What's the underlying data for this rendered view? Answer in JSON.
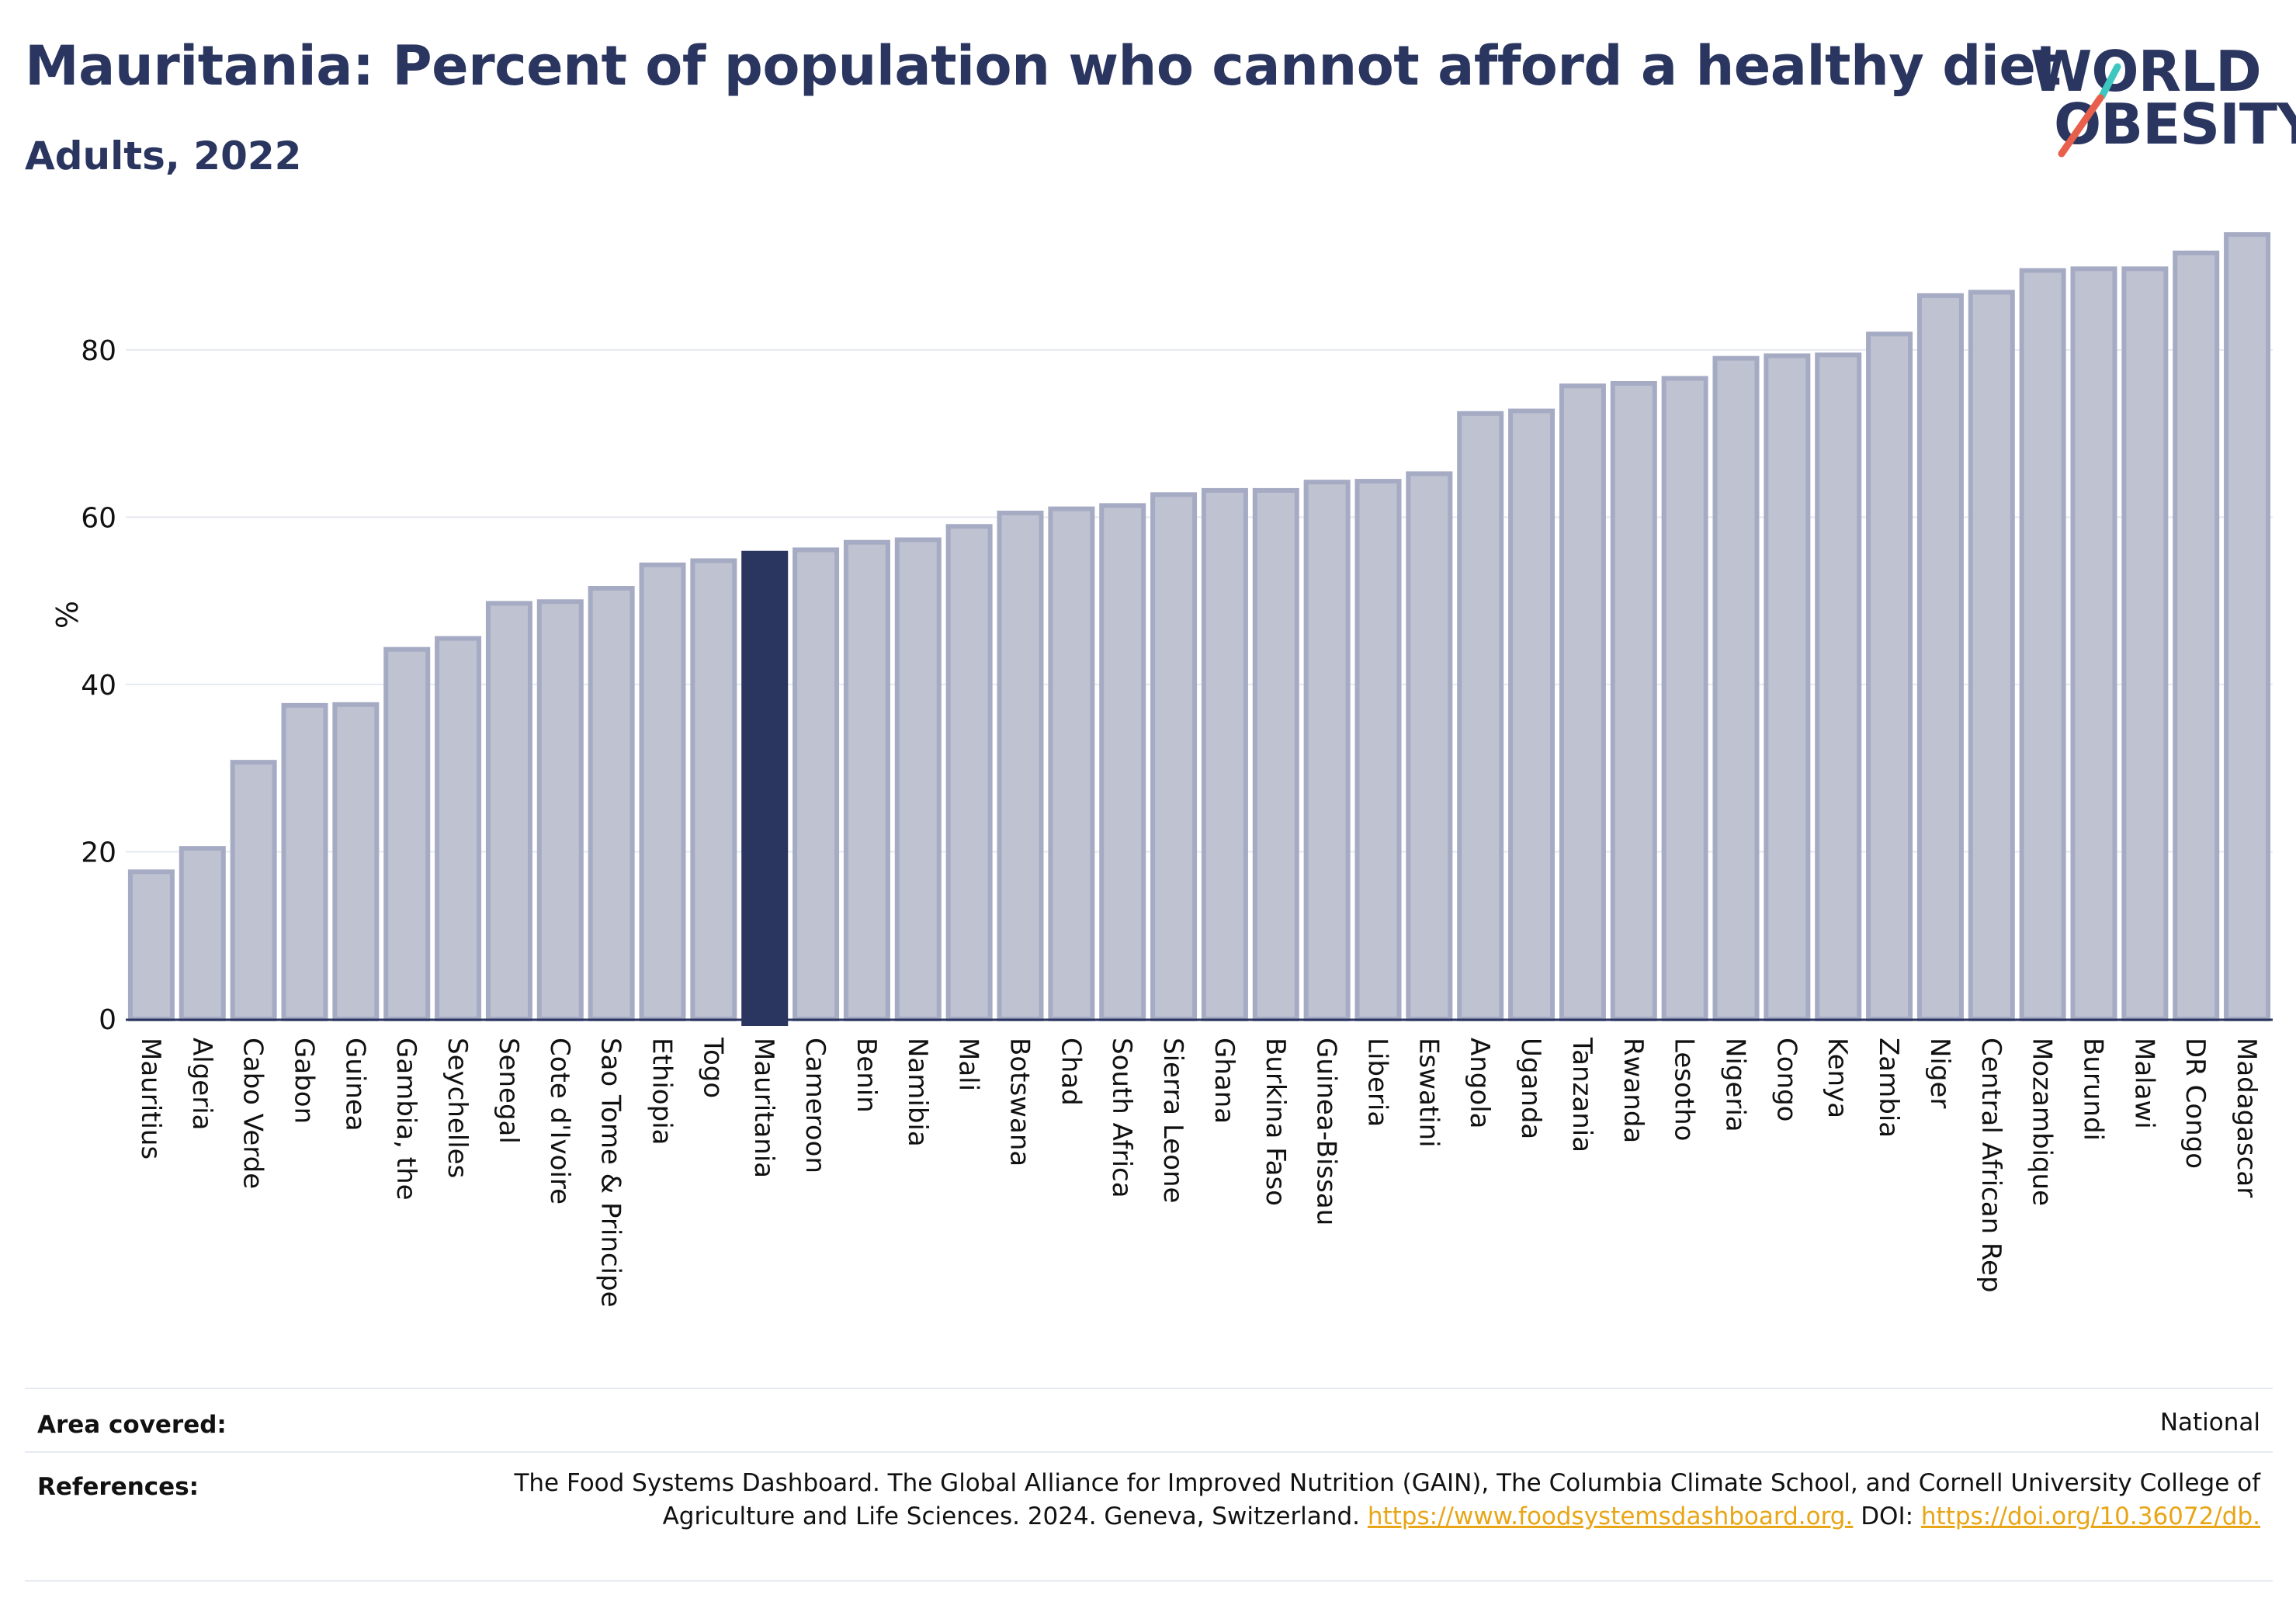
{
  "header": {
    "title": "Mauritania: Percent of population who cannot afford a healthy diet",
    "subtitle": "Adults, 2022"
  },
  "logo": {
    "line1": "WORLD",
    "line2": "OBESITY",
    "slash_colors": [
      "#3ec7c0",
      "#e8604c"
    ]
  },
  "colors": {
    "bar": "#bec2d1",
    "bar_outline": "#a6abc4",
    "highlight": "#2a3560",
    "text": "#2a3560"
  },
  "chart_data": {
    "type": "bar",
    "ylabel": "%",
    "ylim": [
      0,
      94
    ],
    "yticks": [
      0,
      20,
      40,
      60,
      80
    ],
    "grid": true,
    "highlight": "Mauritania",
    "categories": [
      "Mauritius",
      "Algeria",
      "Cabo Verde",
      "Gabon",
      "Guinea",
      "Gambia, the",
      "Seychelles",
      "Senegal",
      "Cote d'Ivoire",
      "Sao Tome & Principe",
      "Ethiopia",
      "Togo",
      "Mauritania",
      "Cameroon",
      "Benin",
      "Namibia",
      "Mali",
      "Botswana",
      "Chad",
      "South Africa",
      "Sierra Leone",
      "Ghana",
      "Burkina Faso",
      "Guinea-Bissau",
      "Liberia",
      "Eswatini",
      "Angola",
      "Uganda",
      "Tanzania",
      "Rwanda",
      "Lesotho",
      "Nigeria",
      "Congo",
      "Kenya",
      "Zambia",
      "Niger",
      "Central African Rep",
      "Mozambique",
      "Burundi",
      "Malawi",
      "DR Congo",
      "Madagascar"
    ],
    "values": [
      17.6,
      20.4,
      30.7,
      37.5,
      37.6,
      44.2,
      45.5,
      49.7,
      49.9,
      51.5,
      54.3,
      54.8,
      55.7,
      56.1,
      57.0,
      57.3,
      58.9,
      60.5,
      61.0,
      61.4,
      62.7,
      63.2,
      63.2,
      64.2,
      64.3,
      65.2,
      72.4,
      72.7,
      75.7,
      76.0,
      76.6,
      79.0,
      79.3,
      79.4,
      81.9,
      86.5,
      86.9,
      89.5,
      89.7,
      89.7,
      91.6,
      93.8
    ]
  },
  "footer": {
    "area_label": "Area covered:",
    "area_value": "National",
    "references_label": "References:",
    "references_text": "The Food Systems Dashboard. The Global Alliance for Improved Nutrition (GAIN), The Columbia Climate School, and Cornell University College of Agriculture and Life Sciences. 2024. Geneva, Switzerland.",
    "references_link1": "https://www.foodsystemsdashboard.org.",
    "references_doi_label": "DOI:",
    "references_link2": "https://doi.org/10.36072/db."
  }
}
